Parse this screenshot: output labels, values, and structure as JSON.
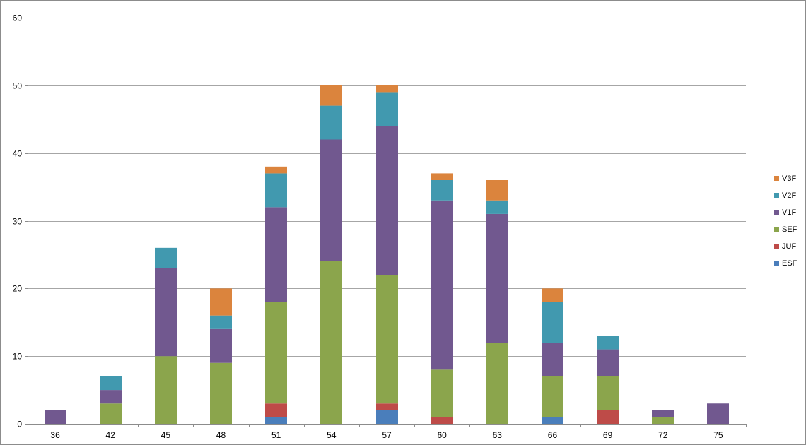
{
  "chart_data": {
    "type": "bar",
    "stacked": true,
    "title": "",
    "xlabel": "",
    "ylabel": "",
    "ylim": [
      0,
      60
    ],
    "yticks": [
      0,
      10,
      20,
      30,
      40,
      50,
      60
    ],
    "grid": "horizontal",
    "legend_position": "right",
    "categories": [
      "36",
      "42",
      "45",
      "48",
      "51",
      "54",
      "57",
      "60",
      "63",
      "66",
      "69",
      "72",
      "75"
    ],
    "series": [
      {
        "name": "ESF",
        "color": "#4a7ebb",
        "values": [
          0,
          0,
          0,
          0,
          1,
          0,
          2,
          0,
          0,
          1,
          0,
          0,
          0
        ]
      },
      {
        "name": "JUF",
        "color": "#be4b48",
        "values": [
          0,
          0,
          0,
          0,
          2,
          0,
          1,
          1,
          0,
          0,
          2,
          0,
          0
        ]
      },
      {
        "name": "SEF",
        "color": "#8ba54c",
        "values": [
          0,
          3,
          10,
          9,
          15,
          24,
          19,
          7,
          12,
          6,
          5,
          1,
          0
        ]
      },
      {
        "name": "V1F",
        "color": "#71588f",
        "values": [
          2,
          2,
          13,
          5,
          14,
          18,
          22,
          25,
          19,
          5,
          4,
          1,
          3
        ]
      },
      {
        "name": "V2F",
        "color": "#4199af",
        "values": [
          0,
          2,
          3,
          2,
          5,
          5,
          5,
          3,
          2,
          6,
          2,
          0,
          0
        ]
      },
      {
        "name": "V3F",
        "color": "#db843d",
        "values": [
          0,
          0,
          0,
          4,
          1,
          3,
          1,
          1,
          3,
          2,
          0,
          0,
          0
        ]
      }
    ]
  }
}
